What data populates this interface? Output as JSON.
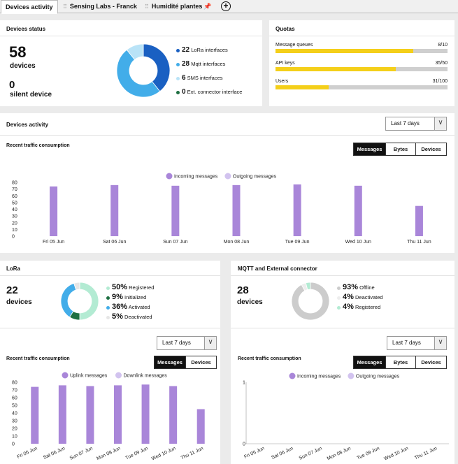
{
  "tabs": [
    {
      "label": "Devices activity"
    },
    {
      "label": "Sensing Labs - Franck"
    },
    {
      "label": "Humidité plantes"
    }
  ],
  "colors": {
    "purple": "#a986d9",
    "purple_light": "#d2c3ef",
    "blue_dark": "#1a60c2",
    "blue": "#42ade9",
    "blue_light": "#b9e3f7",
    "teal": "#b3ebd3",
    "green_dark": "#1e6f42",
    "gray": "#cccccc",
    "yellow": "#f4cf1a"
  },
  "devices_status": {
    "title": "Devices status",
    "count": "58",
    "count_label": "devices",
    "silent_count": "0",
    "silent_label": "silent device",
    "breakdown": [
      {
        "value": "22",
        "label": "LoRa interfaces",
        "color": "#1a60c2",
        "share": 22
      },
      {
        "value": "28",
        "label": "Mqtt interfaces",
        "color": "#42ade9",
        "share": 28
      },
      {
        "value": "6",
        "label": "SMS interfaces",
        "color": "#b9e3f7",
        "share": 6
      },
      {
        "value": "0",
        "label": "Ext. connector interface",
        "color": "#1e6f42",
        "share": 0
      }
    ]
  },
  "quotas": {
    "title": "Quotas",
    "items": [
      {
        "label": "Message queues",
        "value": "8/10",
        "fraction": 0.8
      },
      {
        "label": "API keys",
        "value": "35/50",
        "fraction": 0.7
      },
      {
        "label": "Users",
        "value": "31/100",
        "fraction": 0.31
      }
    ]
  },
  "activity": {
    "title": "Devices activity",
    "period": "Last 7 days",
    "subtitle": "Recent traffic consumption",
    "toggles": [
      "Messages",
      "Bytes",
      "Devices"
    ],
    "active_toggle": "Messages"
  },
  "lora": {
    "title": "LoRa",
    "count": "22",
    "count_label": "devices",
    "breakdown": [
      {
        "value": "50%",
        "label": "Registered",
        "color": "#b3ebd3",
        "share": 50
      },
      {
        "value": "9%",
        "label": "Initialized",
        "color": "#1e6f42",
        "share": 9
      },
      {
        "value": "36%",
        "label": "Activated",
        "color": "#42ade9",
        "share": 36
      },
      {
        "value": "5%",
        "label": "Deactivated",
        "color": "#e6e6e6",
        "share": 5
      }
    ],
    "period": "Last 7 days",
    "subtitle": "Recent traffic consumption",
    "toggles": [
      "Messages",
      "Devices"
    ],
    "active_toggle": "Messages"
  },
  "mqtt": {
    "title": "MQTT and External connector",
    "count": "28",
    "count_label": "devices",
    "breakdown": [
      {
        "value": "93%",
        "label": "Offline",
        "color": "#cccccc",
        "share": 93
      },
      {
        "value": "4%",
        "label": "Deactivated",
        "color": "#ededed",
        "share": 4
      },
      {
        "value": "4%",
        "label": "Registered",
        "color": "#b3ebd3",
        "share": 4
      }
    ],
    "period": "Last 7 days",
    "subtitle": "Recent traffic consumption",
    "toggles": [
      "Messages",
      "Bytes",
      "Devices"
    ],
    "active_toggle": "Messages"
  },
  "chart_data": [
    {
      "type": "bar",
      "categories": [
        "Fri 05 Jun",
        "Sat 06 Jun",
        "Sun 07 Jun",
        "Mon 08 Jun",
        "Tue 09 Jun",
        "Wed 10 Jun",
        "Thu 11 Jun"
      ],
      "series": [
        {
          "name": "Incoming messages",
          "values": [
            74,
            76,
            75,
            76,
            77,
            75,
            45
          ],
          "color": "#a986d9"
        },
        {
          "name": "Outgoing messages",
          "values": [
            0,
            0,
            0,
            0,
            0,
            0,
            0
          ],
          "color": "#d2c3ef"
        }
      ],
      "yticks": [
        0,
        10,
        20,
        30,
        40,
        50,
        60,
        70,
        80
      ],
      "ylim": [
        0,
        80
      ],
      "legend": "top-center"
    },
    {
      "type": "bar",
      "categories": [
        "Fri 05 Jun",
        "Sat 06 Jun",
        "Sun 07 Jun",
        "Mon 08 Jun",
        "Tue 09 Jun",
        "Wed 10 Jun",
        "Thu 11 Jun"
      ],
      "series": [
        {
          "name": "Uplink messages",
          "values": [
            74,
            76,
            75,
            76,
            77,
            75,
            45
          ],
          "color": "#a986d9"
        },
        {
          "name": "Downlink messages",
          "values": [
            0,
            0,
            0,
            0,
            0,
            0,
            0
          ],
          "color": "#d2c3ef"
        }
      ],
      "yticks": [
        0,
        10,
        20,
        30,
        40,
        50,
        60,
        70,
        80
      ],
      "ylim": [
        0,
        80
      ],
      "legend": "top-center"
    },
    {
      "type": "bar",
      "categories": [
        "Fri 05 Jun",
        "Sat 06 Jun",
        "Sun 07 Jun",
        "Mon 08 Jun",
        "Tue 09 Jun",
        "Wed 10 Jun",
        "Thu 11 Jun"
      ],
      "series": [
        {
          "name": "Incoming messages",
          "values": [
            0,
            0,
            0,
            0,
            0,
            0,
            0
          ],
          "color": "#a986d9"
        },
        {
          "name": "Outgoing messages",
          "values": [
            0,
            0,
            0,
            0,
            0,
            0,
            0
          ],
          "color": "#d2c3ef"
        }
      ],
      "yticks": [
        0,
        1
      ],
      "ylim": [
        0,
        1
      ],
      "legend": "top-center"
    }
  ]
}
